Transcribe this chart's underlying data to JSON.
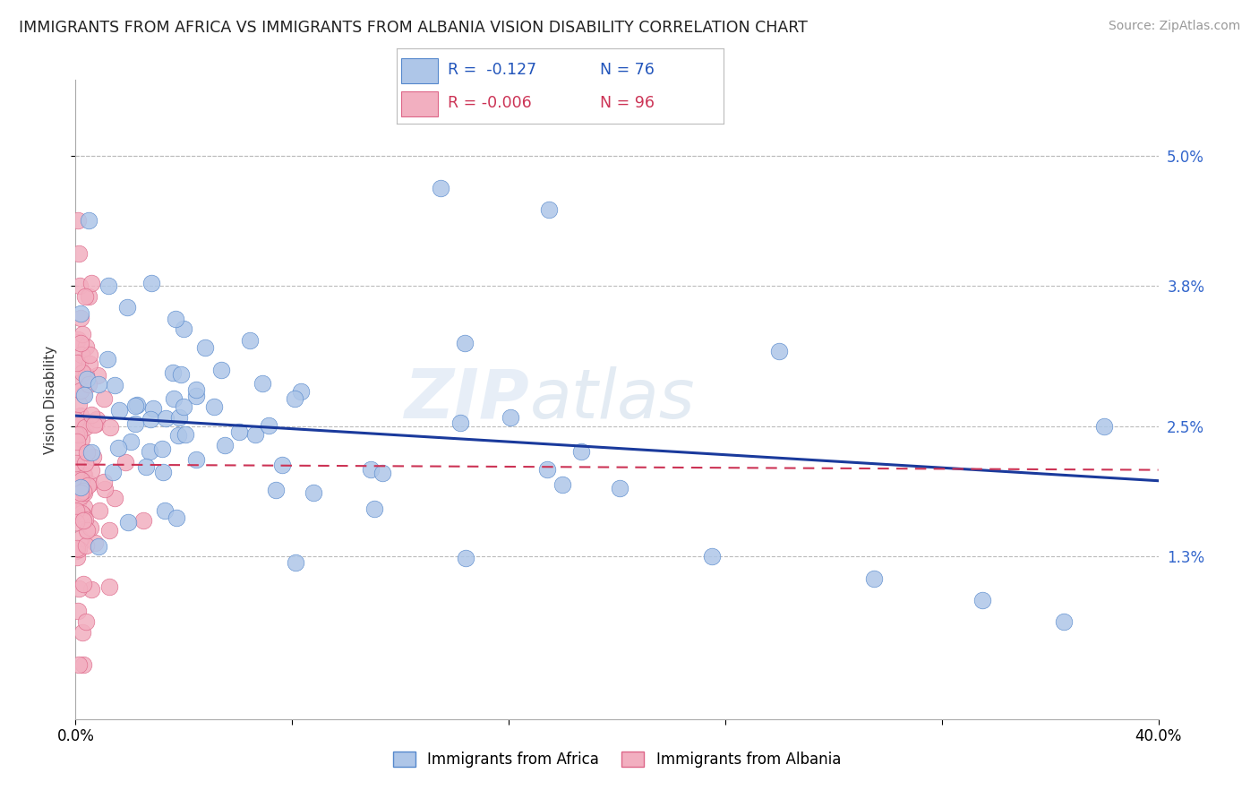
{
  "title": "IMMIGRANTS FROM AFRICA VS IMMIGRANTS FROM ALBANIA VISION DISABILITY CORRELATION CHART",
  "source": "Source: ZipAtlas.com",
  "ylabel": "Vision Disability",
  "ytick_values": [
    0.013,
    0.025,
    0.038,
    0.05
  ],
  "ytick_labels": [
    "1.3%",
    "2.5%",
    "3.8%",
    "5.0%"
  ],
  "xlim": [
    0.0,
    0.4
  ],
  "ylim": [
    -0.002,
    0.057
  ],
  "africa_color": "#aec6e8",
  "albania_color": "#f2afc0",
  "africa_edge": "#5588cc",
  "albania_edge": "#dd6688",
  "trend_africa_color": "#1a3a9c",
  "trend_albania_color": "#cc3355",
  "watermark": "ZIPatlas",
  "background_color": "#ffffff",
  "grid_color": "#bbbbbb",
  "title_fontsize": 12.5,
  "source_fontsize": 10,
  "axis_label_fontsize": 11,
  "tick_fontsize": 12,
  "legend_r_color_africa": "#2255bb",
  "legend_r_color_albania": "#cc3355",
  "legend_n_color": "#2255bb",
  "legend_n_color_albania": "#cc3355"
}
